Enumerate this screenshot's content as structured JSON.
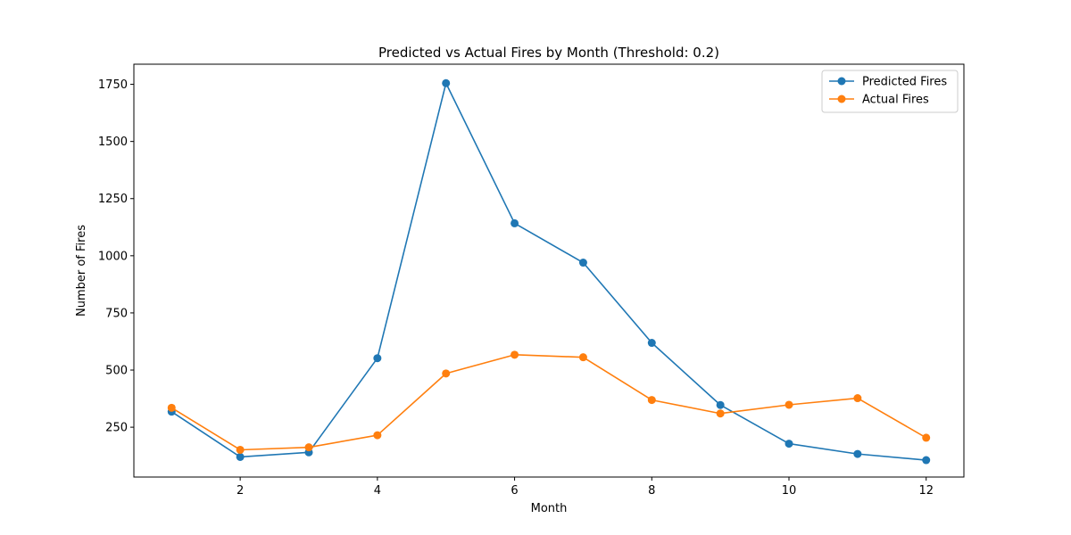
{
  "chart_data": {
    "type": "line",
    "title": "Predicted vs Actual Fires by Month (Threshold: 0.2)",
    "xlabel": "Month",
    "ylabel": "Number of Fires",
    "x": [
      1,
      2,
      3,
      4,
      5,
      6,
      7,
      8,
      9,
      10,
      11,
      12
    ],
    "xlim": [
      0.45,
      12.55
    ],
    "ylim": [
      32,
      1838
    ],
    "xticks": [
      2,
      4,
      6,
      8,
      10,
      12
    ],
    "yticks": [
      250,
      500,
      750,
      1000,
      1250,
      1500,
      1750
    ],
    "grid": false,
    "legend_position": "top-right",
    "series": [
      {
        "name": "Predicted Fires",
        "color": "#1f77b4",
        "marker": "circle",
        "values": [
          318,
          120,
          140,
          552,
          1755,
          1142,
          970,
          619,
          347,
          178,
          133,
          106
        ]
      },
      {
        "name": "Actual Fires",
        "color": "#ff7f0e",
        "marker": "circle",
        "values": [
          335,
          151,
          162,
          215,
          485,
          567,
          556,
          369,
          310,
          348,
          377,
          204
        ]
      }
    ]
  }
}
